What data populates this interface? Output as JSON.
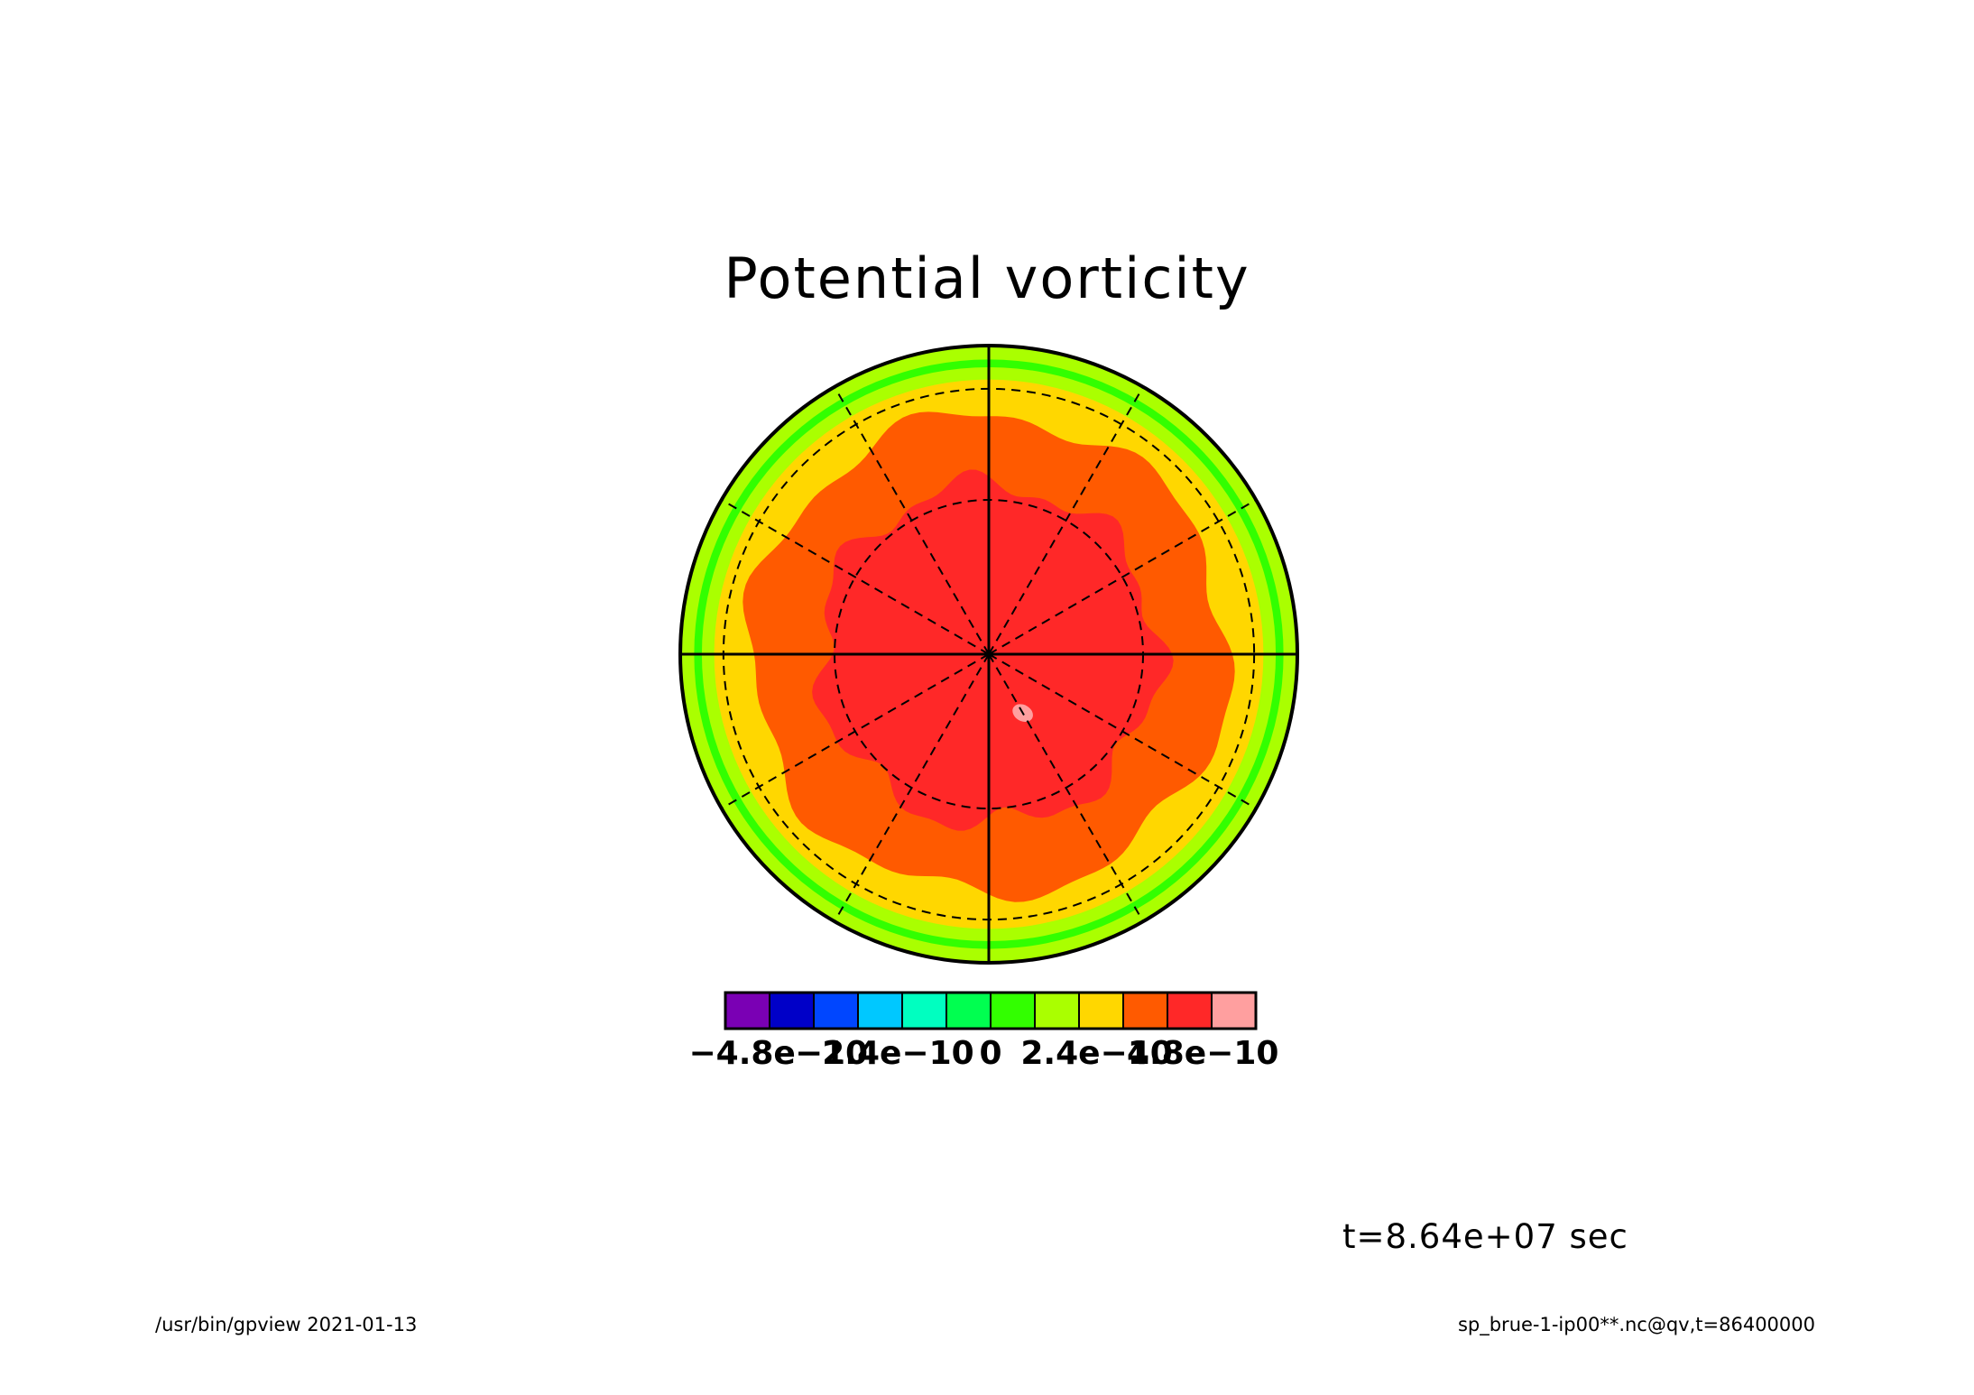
{
  "chart_data": {
    "type": "heatmap",
    "projection": "polar-stereographic",
    "title": "Potential vorticity",
    "variable": "qv",
    "time_label": "t=8.64e+07 sec",
    "colorbar": {
      "levels": [
        -6e-10,
        -5e-10,
        -4e-10,
        -3e-10,
        -2e-10,
        -1e-10,
        0,
        1e-10,
        2e-10,
        3e-10,
        4e-10,
        5e-10,
        6e-10
      ],
      "colors": [
        "#7a00b4",
        "#0000c8",
        "#0046ff",
        "#00c8ff",
        "#00ffc0",
        "#00ff50",
        "#32ff00",
        "#aaff00",
        "#ffd700",
        "#ff5a00",
        "#ff2828",
        "#ff9f9f"
      ],
      "tick_values": [
        -4.8e-10,
        -2.4e-10,
        0,
        2.4e-10,
        4.8e-10
      ],
      "tick_labels": [
        "−4.8e−10",
        "−2.4e−10",
        "0",
        "2.4e−10",
        "4.8e−10"
      ]
    },
    "rings_outer_to_inner": [
      {
        "color": "#aaff00",
        "radius_fraction": 1.0
      },
      {
        "color": "#32ff00",
        "radius_fraction": 0.955
      },
      {
        "color": "#aaff00",
        "radius_fraction": 0.93
      },
      {
        "color": "#ffd700",
        "radius_fraction": 0.89
      }
    ],
    "contour_regions": [
      {
        "color": "#ff5a00",
        "base_radius_fraction": 0.775,
        "wobble": 0.03,
        "harmonic": 6
      },
      {
        "color": "#ff2828",
        "base_radius_fraction": 0.55,
        "wobble": 0.035,
        "harmonic": 7
      }
    ],
    "spot": {
      "color": "#ff9f9f",
      "radius_fraction": 0.22,
      "bearing_deg": 150
    },
    "grid": {
      "dashed_circle_fractions": [
        0.86,
        0.5
      ],
      "dashed_meridian_step_deg": 30,
      "solid_axes": true
    }
  },
  "footer": {
    "left": "/usr/bin/gpview  2021-01-13",
    "right": "sp_brue-1-ip00**.nc@qv,t=86400000"
  }
}
